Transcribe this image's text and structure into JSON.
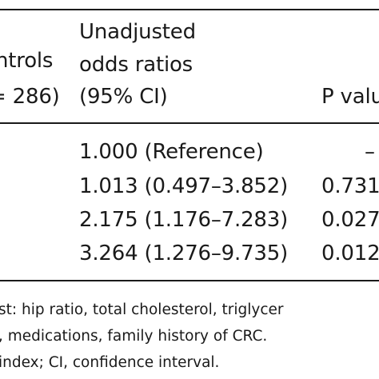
{
  "table": {
    "headers": {
      "controls": {
        "line1": "ntrols",
        "line2": "= 286)"
      },
      "or": {
        "line1": "Unadjusted",
        "line2": "odds ratios",
        "line3": "(95% CI)"
      },
      "p": {
        "line1": "P valu"
      }
    },
    "rows": [
      {
        "or": "1.000 (Reference)",
        "p": "–"
      },
      {
        "or": "1.013 (0.497–3.852)",
        "p": "0.731"
      },
      {
        "or": "2.175 (1.176–7.283)",
        "p": "0.027"
      },
      {
        "or": "3.264 (1.276–9.735)",
        "p": "0.012"
      }
    ],
    "footnotes": [
      "st: hip ratio, total cholesterol, triglycer",
      ", medications, family history of CRC.",
      "index; CI, confidence interval."
    ]
  }
}
